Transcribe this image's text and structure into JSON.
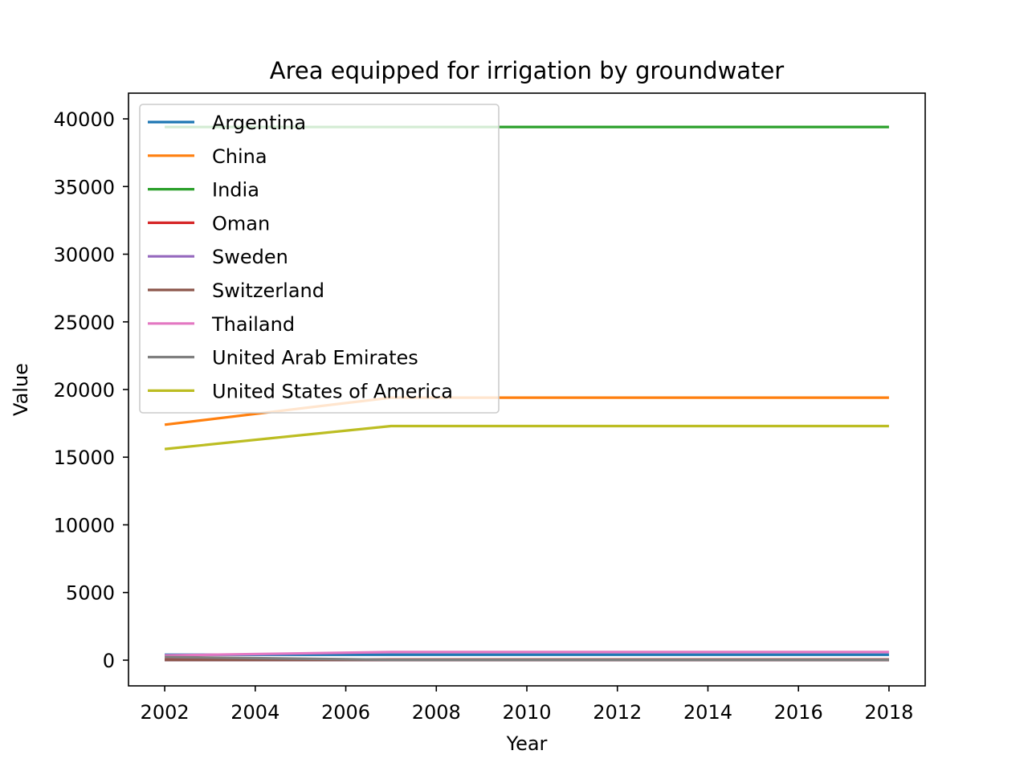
{
  "chart_data": {
    "type": "line",
    "title": "Area equipped for irrigation by groundwater",
    "xlabel": "Year",
    "ylabel": "Value",
    "x": [
      2002,
      2007,
      2012,
      2017,
      2018
    ],
    "xlim": [
      2001.2,
      2018.8
    ],
    "ylim": [
      -1900,
      41900
    ],
    "xticks": [
      2002,
      2004,
      2006,
      2008,
      2010,
      2012,
      2014,
      2016,
      2018
    ],
    "yticks": [
      0,
      5000,
      10000,
      15000,
      20000,
      25000,
      30000,
      35000,
      40000
    ],
    "legend_position": "upper-left",
    "grid": false,
    "series": [
      {
        "name": "Argentina",
        "color": "#1f77b4",
        "values": [
          400,
          400,
          400,
          400,
          400
        ]
      },
      {
        "name": "China",
        "color": "#ff7f0e",
        "values": [
          17400,
          19400,
          19400,
          19400,
          19400
        ]
      },
      {
        "name": "India",
        "color": "#2ca02c",
        "values": [
          39400,
          39400,
          39400,
          39400,
          39400
        ]
      },
      {
        "name": "Oman",
        "color": "#d62728",
        "values": [
          50,
          50,
          50,
          50,
          50
        ]
      },
      {
        "name": "Sweden",
        "color": "#9467bd",
        "values": [
          5,
          5,
          5,
          5,
          5
        ]
      },
      {
        "name": "Switzerland",
        "color": "#8c564b",
        "values": [
          10,
          10,
          10,
          10,
          10
        ]
      },
      {
        "name": "Thailand",
        "color": "#e377c2",
        "values": [
          350,
          600,
          600,
          600,
          600
        ]
      },
      {
        "name": "United Arab Emirates",
        "color": "#7f7f7f",
        "values": [
          230,
          30,
          30,
          30,
          30
        ]
      },
      {
        "name": "United States of America",
        "color": "#bcbd22",
        "values": [
          15600,
          17300,
          17300,
          17300,
          17300
        ]
      }
    ]
  }
}
